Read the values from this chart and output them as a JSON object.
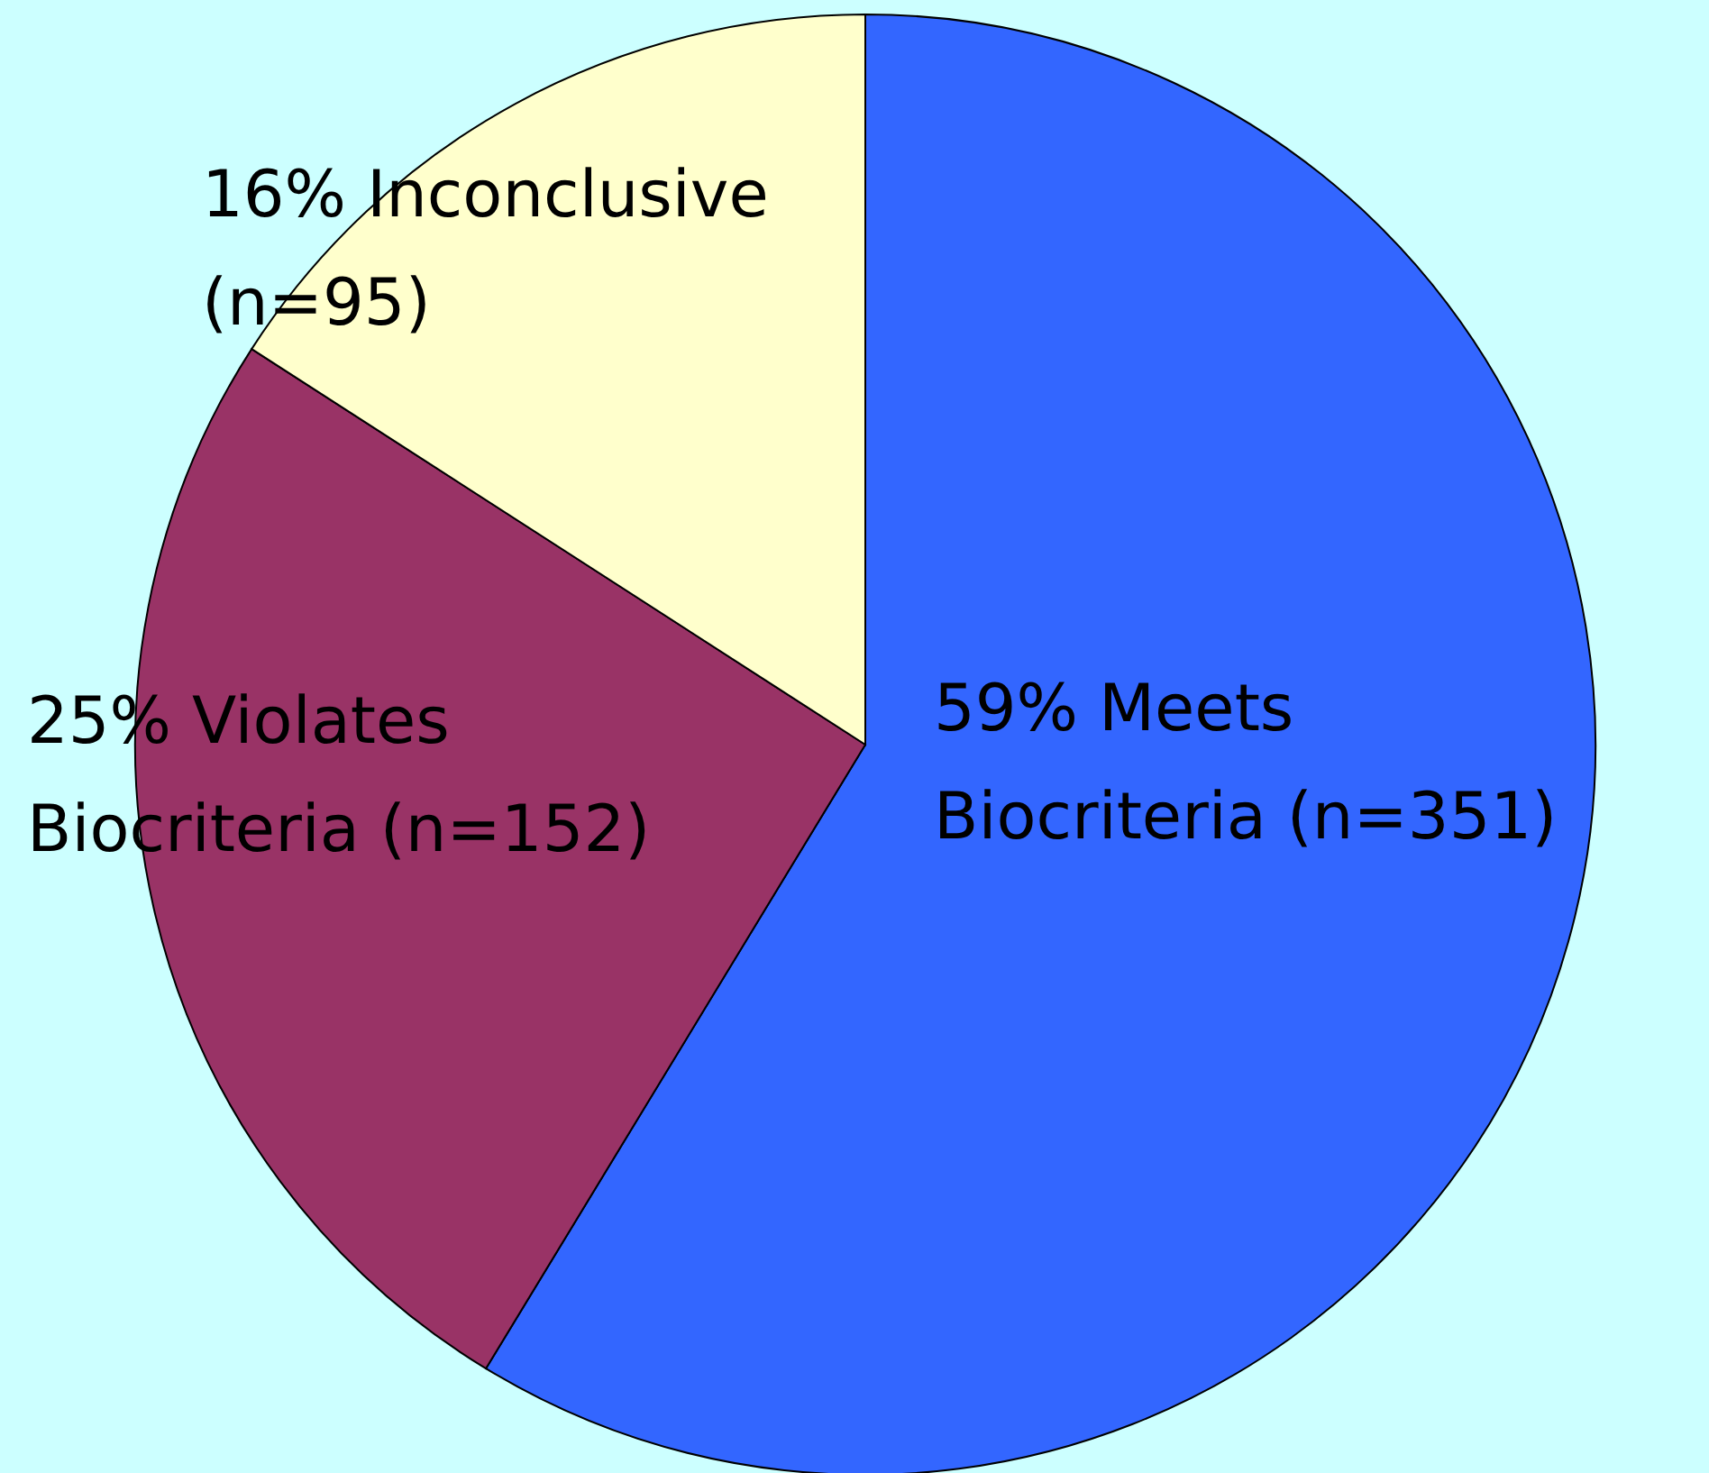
{
  "chart_data": {
    "type": "pie",
    "categories": [
      "59% Meets Biocriteria (n=351)",
      "25% Violates Biocriteria (n=152)",
      "16% Inconclusive (n=95)"
    ],
    "values": [
      351,
      152,
      95
    ],
    "colors": [
      "#3366ff",
      "#993366",
      "#ffffcc"
    ]
  }
}
